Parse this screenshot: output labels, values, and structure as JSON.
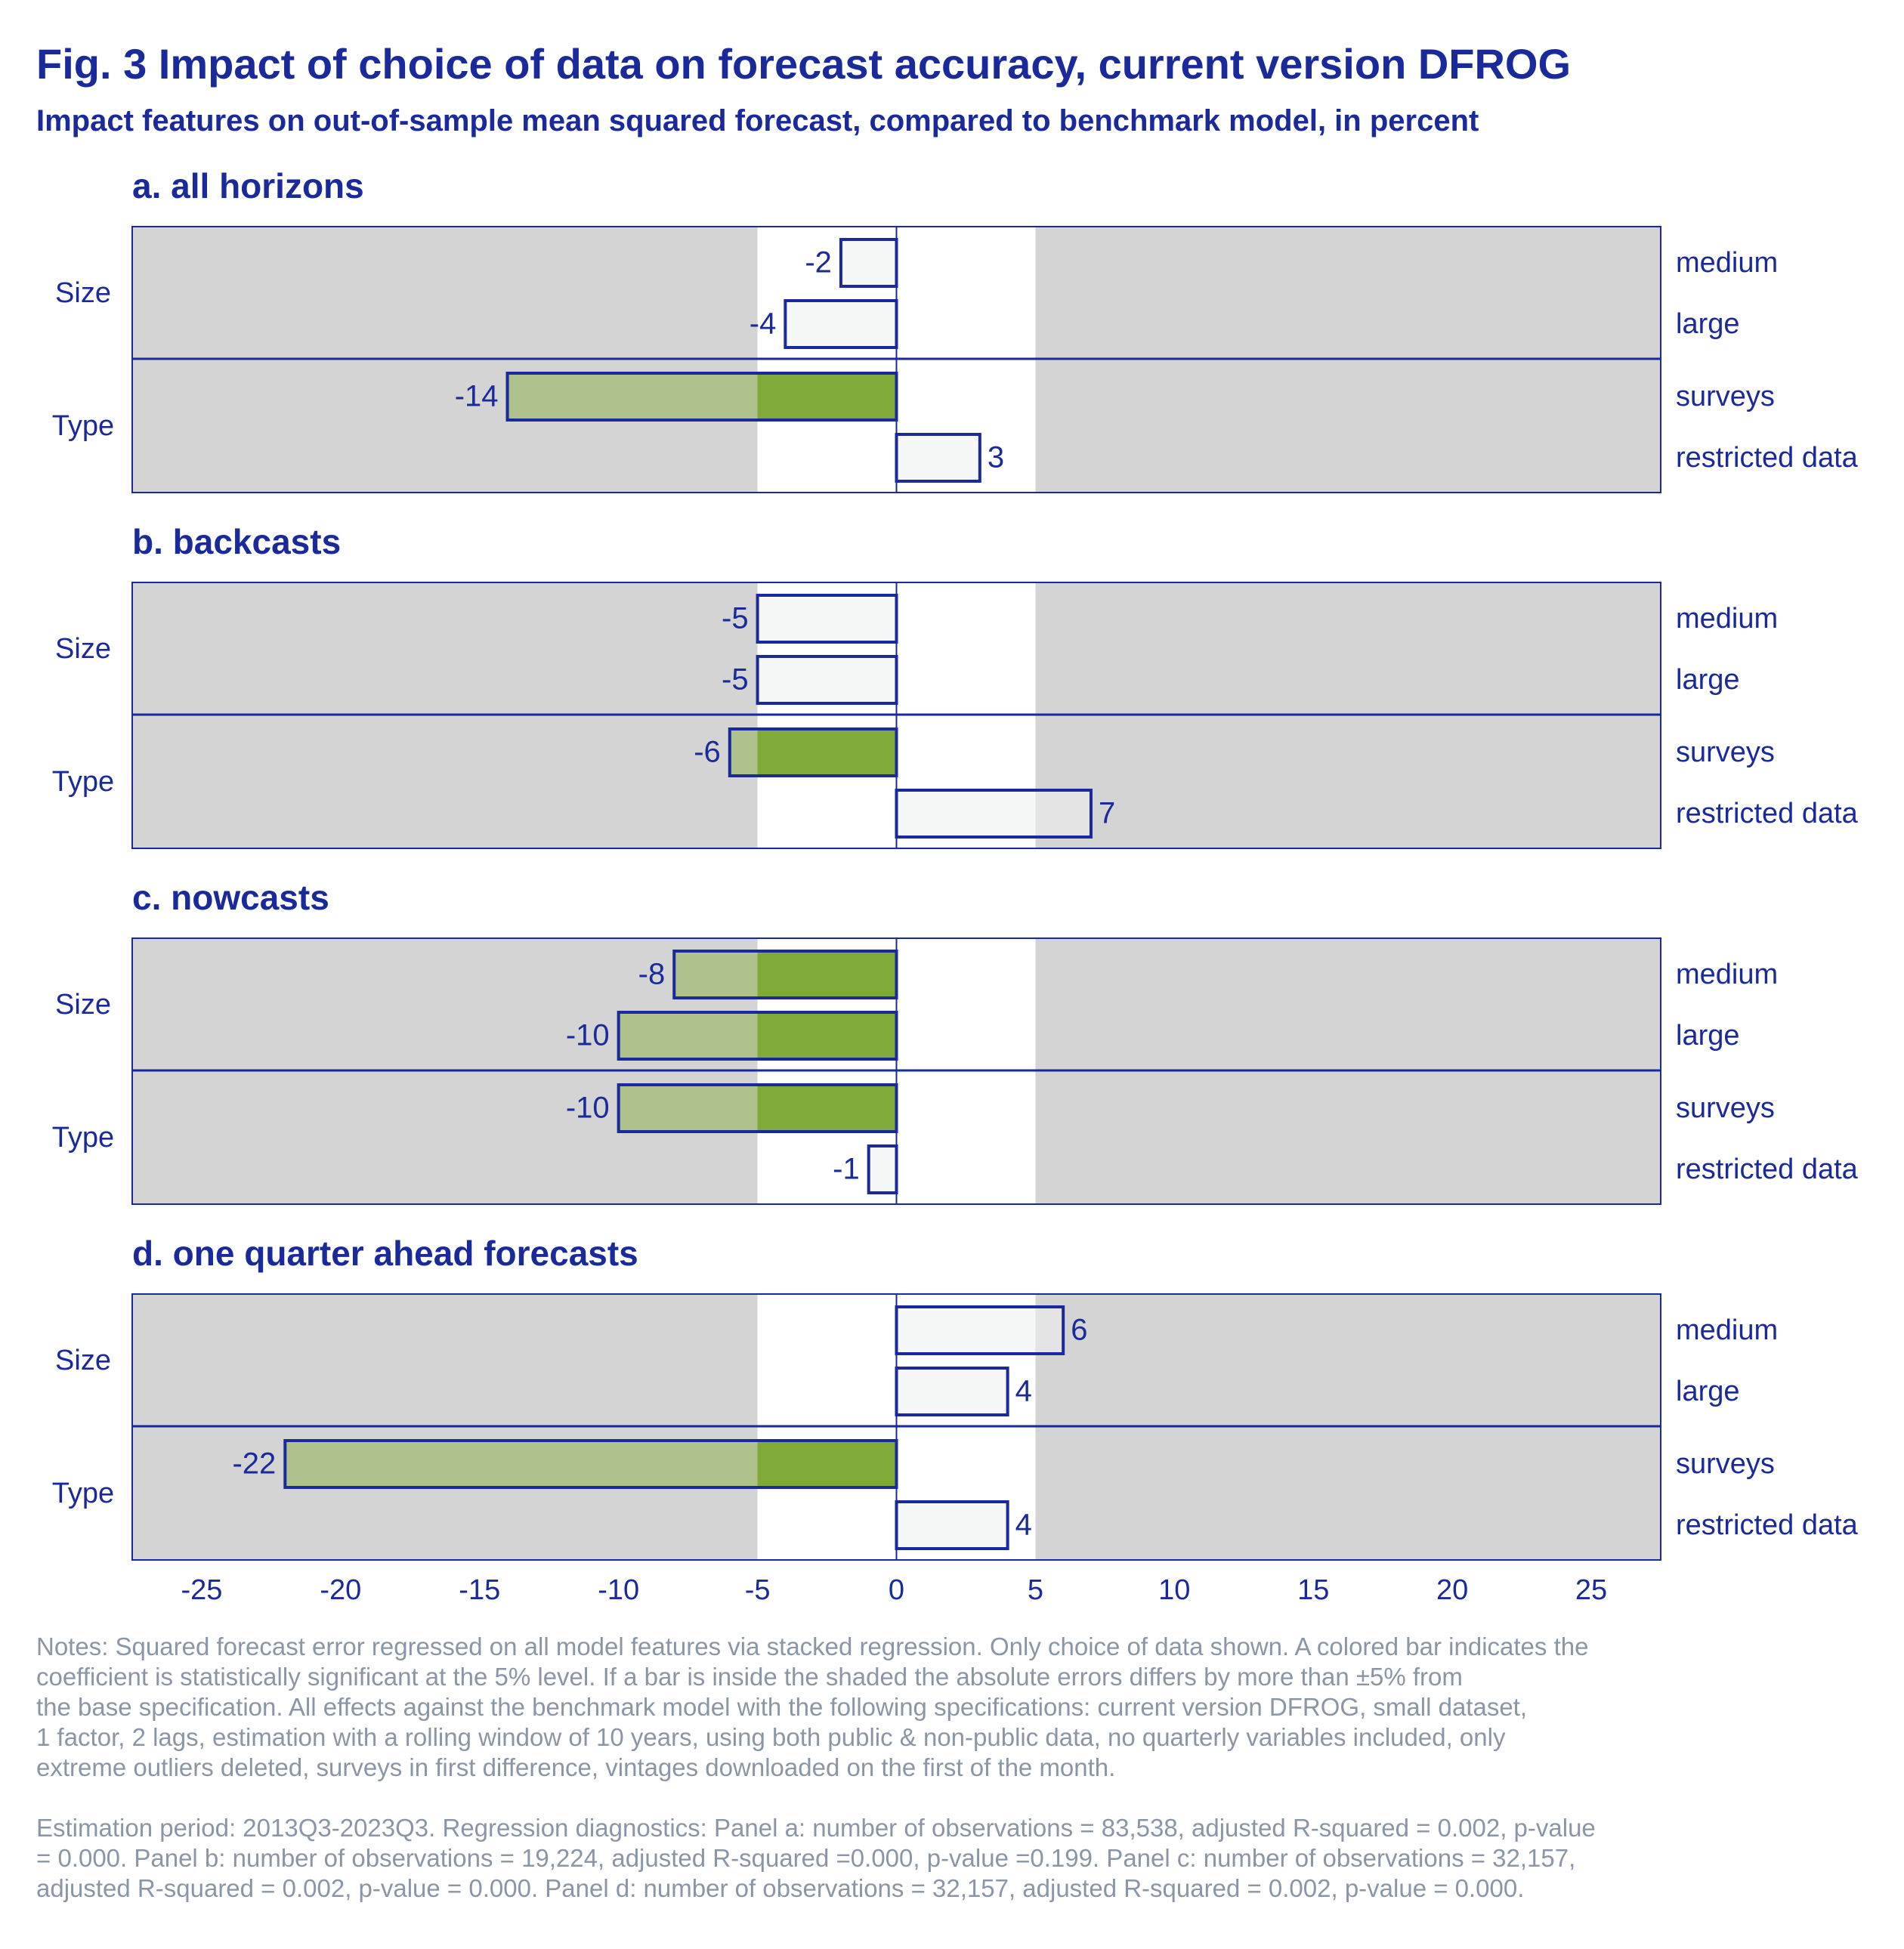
{
  "title": "Fig. 3 Impact of choice of data on forecast accuracy, current version DFROG",
  "subtitle": "Impact features on out-of-sample mean squared forecast, compared to benchmark model, in percent",
  "colors": {
    "text": "#1a2a9b",
    "border": "#1a2a9b",
    "shade": "#d4d4d4",
    "significant_fill": "#80aa38",
    "insignificant_fill": "#f6f8f7",
    "notes": "#8a96a6"
  },
  "chart_data": {
    "type": "bar",
    "orientation": "horizontal",
    "xlim": [
      -27.5,
      27.5
    ],
    "xticks": [
      "-25",
      "-20",
      "-15",
      "-10",
      "-5",
      "0",
      "5",
      "10",
      "15",
      "20",
      "25"
    ],
    "shaded_region": "outside ±5",
    "panels": [
      {
        "title": "a. all horizons",
        "groups": [
          {
            "label": "Size",
            "rows": [
              {
                "label": "medium",
                "value": -2,
                "value_label": "-2",
                "significant": false
              },
              {
                "label": "large",
                "value": -4,
                "value_label": "-4",
                "significant": false
              }
            ]
          },
          {
            "label": "Type",
            "rows": [
              {
                "label": "surveys",
                "value": -14,
                "value_label": "-14",
                "significant": true
              },
              {
                "label": "restricted data",
                "value": 3,
                "value_label": "3",
                "significant": false
              }
            ]
          }
        ]
      },
      {
        "title": "b. backcasts",
        "groups": [
          {
            "label": "Size",
            "rows": [
              {
                "label": "medium",
                "value": -5,
                "value_label": "-5",
                "significant": false
              },
              {
                "label": "large",
                "value": -5,
                "value_label": "-5",
                "significant": false
              }
            ]
          },
          {
            "label": "Type",
            "rows": [
              {
                "label": "surveys",
                "value": -6,
                "value_label": "-6",
                "significant": true
              },
              {
                "label": "restricted data",
                "value": 7,
                "value_label": "7",
                "significant": false
              }
            ]
          }
        ]
      },
      {
        "title": "c. nowcasts",
        "groups": [
          {
            "label": "Size",
            "rows": [
              {
                "label": "medium",
                "value": -8,
                "value_label": "-8",
                "significant": true
              },
              {
                "label": "large",
                "value": -10,
                "value_label": "-10",
                "significant": true
              }
            ]
          },
          {
            "label": "Type",
            "rows": [
              {
                "label": "surveys",
                "value": -10,
                "value_label": "-10",
                "significant": true
              },
              {
                "label": "restricted data",
                "value": -1,
                "value_label": "-1",
                "significant": false
              }
            ]
          }
        ]
      },
      {
        "title": "d. one quarter ahead forecasts",
        "groups": [
          {
            "label": "Size",
            "rows": [
              {
                "label": "medium",
                "value": 6,
                "value_label": "6",
                "significant": false
              },
              {
                "label": "large",
                "value": 4,
                "value_label": "4",
                "significant": false
              }
            ]
          },
          {
            "label": "Type",
            "rows": [
              {
                "label": "surveys",
                "value": -22,
                "value_label": "-22",
                "significant": true
              },
              {
                "label": "restricted data",
                "value": 4,
                "value_label": "4",
                "significant": false
              }
            ]
          }
        ]
      }
    ]
  },
  "notes": {
    "paragraph1": "Notes: Squared forecast error regressed on all model features via stacked regression. Only choice of data shown. A colored bar indicates the\ncoefficient is statistically significant at the 5% level. If a bar is inside the shaded the absolute errors differs by more than ±5% from\nthe base specification. All effects against the benchmark model with the following specifications: current version DFROG, small dataset,\n1 factor, 2 lags, estimation with a rolling window of 10 years, using both public & non-public data, no quarterly variables included, only\nextreme outliers deleted, surveys in first difference, vintages downloaded on the first of the month.",
    "paragraph2": " Estimation period: 2013Q3-2023Q3. Regression diagnostics: Panel a: number of observations = 83,538, adjusted R-squared = 0.002, p-value\n= 0.000. Panel b: number of observations = 19,224, adjusted R-squared =0.000, p-value =0.199. Panel c: number of observations = 32,157,\nadjusted R-squared = 0.002, p-value = 0.000. Panel d: number of observations = 32,157, adjusted R-squared = 0.002, p-value = 0.000."
  }
}
